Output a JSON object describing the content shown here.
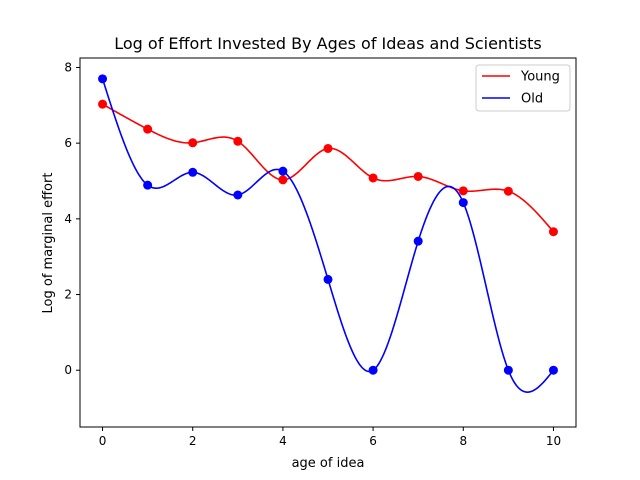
{
  "chart_data": {
    "type": "line",
    "title": "Log of Effort Invested By Ages of Ideas and Scientists",
    "xlabel": "age of idea",
    "ylabel": "Log of marginal effort",
    "x": [
      0,
      1,
      2,
      3,
      4,
      5,
      6,
      7,
      8,
      9,
      10
    ],
    "xlim": [
      -0.5,
      10.5
    ],
    "ylim": [
      -1.5,
      8.25
    ],
    "xticks": [
      0,
      2,
      4,
      6,
      8,
      10
    ],
    "yticks": [
      0,
      2,
      4,
      6,
      8
    ],
    "xtick_labels": [
      "0",
      "2",
      "4",
      "6",
      "8",
      "10"
    ],
    "ytick_labels": [
      "0",
      "2",
      "4",
      "6",
      "8"
    ],
    "legend_position": "top-right",
    "grid": false,
    "series": [
      {
        "name": "Young",
        "color": "#ff0000",
        "values": [
          7.03,
          6.37,
          6.01,
          6.05,
          5.03,
          5.86,
          5.08,
          5.12,
          4.74,
          4.73,
          3.66
        ]
      },
      {
        "name": "Old",
        "color": "#0000ff",
        "values": [
          7.7,
          4.89,
          5.23,
          4.63,
          5.26,
          2.4,
          0.0,
          3.41,
          4.43,
          0.0,
          0.0
        ]
      }
    ]
  }
}
